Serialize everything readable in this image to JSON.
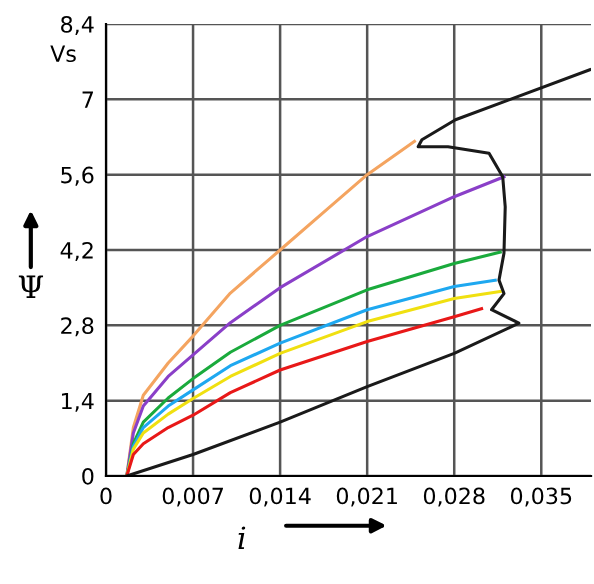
{
  "chart_data": {
    "type": "line",
    "xlabel": "i",
    "ylabel": "Ψ",
    "annotations": [
      "Vs"
    ],
    "xlim": [
      0,
      0.039
    ],
    "ylim": [
      0,
      8.4
    ],
    "xticks": [
      0,
      {
        "value": 0.007,
        "label": "0,007"
      },
      {
        "value": 0.014,
        "label": "0,014"
      },
      {
        "value": 0.021,
        "label": "0,021"
      },
      {
        "value": 0.028,
        "label": "0,028"
      },
      {
        "value": 0.035,
        "label": "0,035"
      }
    ],
    "yticks": [
      0,
      {
        "value": 1.4,
        "label": "1,4"
      },
      {
        "value": 2.8,
        "label": "2,8"
      },
      {
        "value": 4.2,
        "label": "4,2"
      },
      {
        "value": 5.6,
        "label": "5,6"
      },
      {
        "value": 7,
        "label": "7"
      },
      {
        "value": 8.4,
        "label": "8,4"
      }
    ],
    "grid": true,
    "legend": false,
    "marker": "none",
    "line_style": "solid",
    "series": [
      {
        "color": "#f4a460",
        "x": [
          0.00167,
          0.0022,
          0.003,
          0.005,
          0.007,
          0.01,
          0.014,
          0.018,
          0.021,
          0.0248
        ],
        "values": [
          0,
          0.9,
          1.5,
          2.1,
          2.6,
          3.4,
          4.2,
          5.0,
          5.6,
          6.22
        ]
      },
      {
        "color": "#8a3fc8",
        "x": [
          0.00167,
          0.0022,
          0.003,
          0.005,
          0.007,
          0.01,
          0.014,
          0.021,
          0.028,
          0.032
        ],
        "values": [
          0,
          0.8,
          1.3,
          1.85,
          2.25,
          2.85,
          3.5,
          4.45,
          5.19,
          5.56
        ]
      },
      {
        "color": "#1aaa3c",
        "x": [
          0.00167,
          0.0022,
          0.003,
          0.005,
          0.007,
          0.01,
          0.014,
          0.021,
          0.028,
          0.0317
        ],
        "values": [
          0,
          0.6,
          1.0,
          1.45,
          1.81,
          2.3,
          2.8,
          3.46,
          3.95,
          4.16
        ]
      },
      {
        "color": "#1ea8f0",
        "x": [
          0.00167,
          0.0022,
          0.003,
          0.005,
          0.007,
          0.01,
          0.014,
          0.021,
          0.028,
          0.0313
        ],
        "values": [
          0,
          0.55,
          0.9,
          1.3,
          1.6,
          2.05,
          2.47,
          3.09,
          3.52,
          3.64
        ]
      },
      {
        "color": "#f0e010",
        "x": [
          0.00167,
          0.0022,
          0.003,
          0.005,
          0.007,
          0.01,
          0.014,
          0.021,
          0.028,
          0.0317
        ],
        "values": [
          0,
          0.5,
          0.8,
          1.15,
          1.44,
          1.85,
          2.28,
          2.87,
          3.3,
          3.43
        ]
      },
      {
        "color": "#e81818",
        "x": [
          0.00167,
          0.0022,
          0.003,
          0.005,
          0.007,
          0.01,
          0.014,
          0.021,
          0.028,
          0.0302
        ],
        "values": [
          0,
          0.4,
          0.6,
          0.9,
          1.13,
          1.55,
          1.97,
          2.5,
          2.96,
          3.11
        ]
      },
      {
        "color": "#1a1a1a",
        "x": [
          0.00167,
          0.007,
          0.014,
          0.021,
          0.028,
          0.0332,
          0.031,
          0.032,
          0.0316,
          0.032,
          0.0321,
          0.0319,
          0.0308,
          0.0275,
          0.0251,
          0.0254,
          0.0281,
          0.0324,
          0.0389
        ],
        "values": [
          0,
          0.4,
          1.0,
          1.66,
          2.28,
          2.84,
          3.09,
          3.39,
          3.64,
          4.14,
          5.0,
          5.56,
          6.0,
          6.12,
          6.12,
          6.25,
          6.62,
          6.99,
          7.55
        ]
      }
    ]
  }
}
